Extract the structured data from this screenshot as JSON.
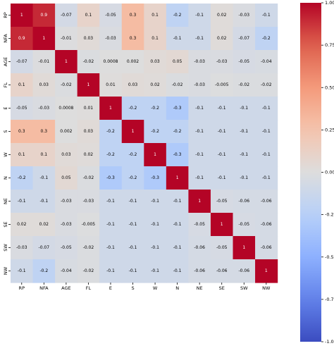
{
  "chart_data": {
    "type": "heatmap",
    "labels": [
      "RP",
      "NFA",
      "AGE",
      "FL",
      "E",
      "S",
      "W",
      "N",
      "NE",
      "SE",
      "SW",
      "NW"
    ],
    "values": [
      [
        1,
        0.9,
        -0.07,
        0.1,
        -0.05,
        0.3,
        0.1,
        -0.2,
        -0.1,
        0.02,
        -0.03,
        -0.1
      ],
      [
        0.9,
        1,
        -0.01,
        0.03,
        -0.03,
        0.3,
        0.1,
        -0.1,
        -0.1,
        0.02,
        -0.07,
        -0.2
      ],
      [
        -0.07,
        -0.01,
        1,
        -0.02,
        0.0008,
        0.002,
        0.03,
        0.05,
        -0.03,
        -0.03,
        -0.05,
        -0.04
      ],
      [
        0.1,
        0.03,
        -0.02,
        1,
        0.01,
        0.03,
        0.02,
        -0.02,
        -0.03,
        -0.005,
        -0.02,
        -0.02
      ],
      [
        -0.05,
        -0.03,
        0.0008,
        0.01,
        1,
        -0.2,
        -0.2,
        -0.3,
        -0.1,
        -0.1,
        -0.1,
        -0.1
      ],
      [
        0.3,
        0.3,
        0.002,
        0.03,
        -0.2,
        1,
        -0.2,
        -0.2,
        -0.1,
        -0.1,
        -0.1,
        -0.1
      ],
      [
        0.1,
        0.1,
        0.03,
        0.02,
        -0.2,
        -0.2,
        1,
        -0.3,
        -0.1,
        -0.1,
        -0.1,
        -0.1
      ],
      [
        -0.2,
        -0.1,
        0.05,
        -0.02,
        -0.3,
        -0.2,
        -0.3,
        1,
        -0.1,
        -0.1,
        -0.1,
        -0.1
      ],
      [
        -0.1,
        -0.1,
        -0.03,
        -0.03,
        -0.1,
        -0.1,
        -0.1,
        -0.1,
        1,
        -0.05,
        -0.06,
        -0.06
      ],
      [
        0.02,
        0.02,
        -0.03,
        -0.005,
        -0.1,
        -0.1,
        -0.1,
        -0.1,
        -0.05,
        1,
        -0.05,
        -0.06
      ],
      [
        -0.03,
        -0.07,
        -0.05,
        -0.02,
        -0.1,
        -0.1,
        -0.1,
        -0.1,
        -0.06,
        -0.05,
        1,
        -0.06
      ],
      [
        -0.1,
        -0.2,
        -0.04,
        -0.02,
        -0.1,
        -0.1,
        -0.1,
        -0.1,
        -0.06,
        -0.06,
        -0.06,
        1
      ]
    ],
    "value_labels": [
      [
        "1",
        "0.9",
        "-0.07",
        "0.1",
        "-0.05",
        "0.3",
        "0.1",
        "-0.2",
        "-0.1",
        "0.02",
        "-0.03",
        "-0.1"
      ],
      [
        "0.9",
        "1",
        "-0.01",
        "0.03",
        "-0.03",
        "0.3",
        "0.1",
        "-0.1",
        "-0.1",
        "0.02",
        "-0.07",
        "-0.2"
      ],
      [
        "-0.07",
        "-0.01",
        "1",
        "-0.02",
        "0.0008",
        "0.002",
        "0.03",
        "0.05",
        "-0.03",
        "-0.03",
        "-0.05",
        "-0.04"
      ],
      [
        "0.1",
        "0.03",
        "-0.02",
        "1",
        "0.01",
        "0.03",
        "0.02",
        "-0.02",
        "-0.03",
        "-0.005",
        "-0.02",
        "-0.02"
      ],
      [
        "-0.05",
        "-0.03",
        "0.0008",
        "0.01",
        "1",
        "-0.2",
        "-0.2",
        "-0.3",
        "-0.1",
        "-0.1",
        "-0.1",
        "-0.1"
      ],
      [
        "0.3",
        "0.3",
        "0.002",
        "0.03",
        "-0.2",
        "1",
        "-0.2",
        "-0.2",
        "-0.1",
        "-0.1",
        "-0.1",
        "-0.1"
      ],
      [
        "0.1",
        "0.1",
        "0.03",
        "0.02",
        "-0.2",
        "-0.2",
        "1",
        "-0.3",
        "-0.1",
        "-0.1",
        "-0.1",
        "-0.1"
      ],
      [
        "-0.2",
        "-0.1",
        "0.05",
        "-0.02",
        "-0.3",
        "-0.2",
        "-0.3",
        "1",
        "-0.1",
        "-0.1",
        "-0.1",
        "-0.1"
      ],
      [
        "-0.1",
        "-0.1",
        "-0.03",
        "-0.03",
        "-0.1",
        "-0.1",
        "-0.1",
        "-0.1",
        "1",
        "-0.05",
        "-0.06",
        "-0.06"
      ],
      [
        "0.02",
        "0.02",
        "-0.03",
        "-0.005",
        "-0.1",
        "-0.1",
        "-0.1",
        "-0.1",
        "-0.05",
        "1",
        "-0.05",
        "-0.06"
      ],
      [
        "-0.03",
        "-0.07",
        "-0.05",
        "-0.02",
        "-0.1",
        "-0.1",
        "-0.1",
        "-0.1",
        "-0.06",
        "-0.05",
        "1",
        "-0.06"
      ],
      [
        "-0.1",
        "-0.2",
        "-0.04",
        "-0.02",
        "-0.1",
        "-0.1",
        "-0.1",
        "-0.1",
        "-0.06",
        "-0.06",
        "-0.06",
        "1"
      ]
    ],
    "colorbar": {
      "colormap": "coolwarm",
      "range": [
        -1.0,
        1.0
      ],
      "ticks": [
        -1.0,
        -0.75,
        -0.5,
        -0.25,
        0.0,
        0.25,
        0.5,
        0.75,
        1.0
      ],
      "tick_labels": [
        "-1.00",
        "-0.75",
        "-0.50",
        "-0.25",
        "0.00",
        "0.25",
        "0.50",
        "0.75",
        "1.00"
      ]
    },
    "title": "",
    "xlabel": "",
    "ylabel": "",
    "grid": false,
    "legend": "colorbar-right"
  }
}
